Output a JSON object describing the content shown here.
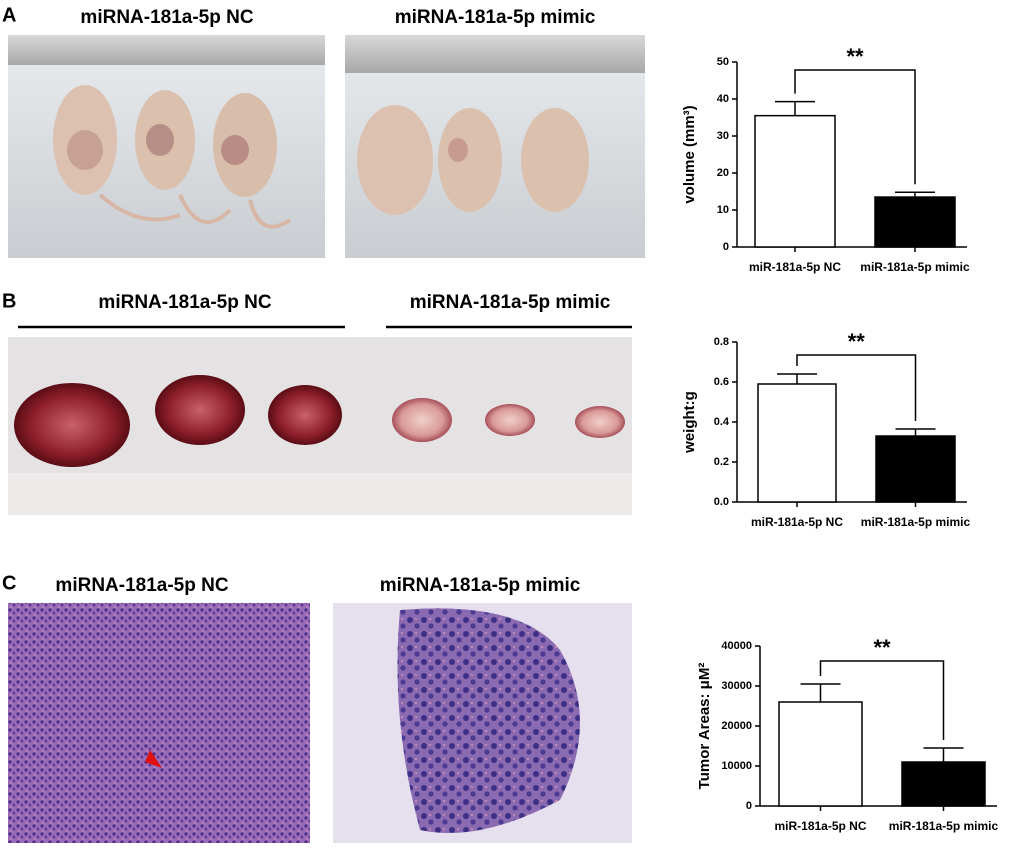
{
  "figure": {
    "panel_labels": [
      "A",
      "B",
      "C"
    ],
    "captions": {
      "a_left": "miRNA-181a-5p NC",
      "a_right": "miRNA-181a-5p mimic",
      "b_left": "miRNA-181a-5p NC",
      "b_right": "miRNA-181a-5p mimic",
      "c_left": "miRNA-181a-5p NC",
      "c_right": "miRNA-181a-5p mimic"
    }
  },
  "chart_data": [
    {
      "type": "bar",
      "y_label": "volume (mm³)",
      "categories": [
        "miR-181a-5p NC",
        "miR-181a-5p mimic"
      ],
      "values": [
        35.5,
        13.5
      ],
      "errors": [
        3.8,
        1.3
      ],
      "colors": [
        "#ffffff",
        "#000000"
      ],
      "ylim": [
        0,
        50
      ],
      "yticks": [
        0,
        10,
        20,
        30,
        40,
        50
      ],
      "significance": "**"
    },
    {
      "type": "bar",
      "y_label": "weight:g",
      "categories": [
        "miR-181a-5p NC",
        "miR-181a-5p mimic"
      ],
      "values": [
        0.59,
        0.33
      ],
      "errors": [
        0.05,
        0.035
      ],
      "colors": [
        "#ffffff",
        "#000000"
      ],
      "ylim": [
        0,
        0.8
      ],
      "yticks": [
        {
          "value": 0,
          "label": "0.0"
        },
        0.2,
        0.4,
        0.6,
        0.8
      ],
      "significance": "**"
    },
    {
      "type": "bar",
      "y_label": "Tumor Areas: μM²",
      "categories": [
        "miR-181a-5p NC",
        "miR-181a-5p mimic"
      ],
      "values": [
        26000,
        11000
      ],
      "errors": [
        4500,
        3500
      ],
      "colors": [
        "#ffffff",
        "#000000"
      ],
      "ylim": [
        0,
        40000
      ],
      "yticks": [
        0,
        10000,
        20000,
        30000,
        40000
      ],
      "significance": "**"
    }
  ]
}
